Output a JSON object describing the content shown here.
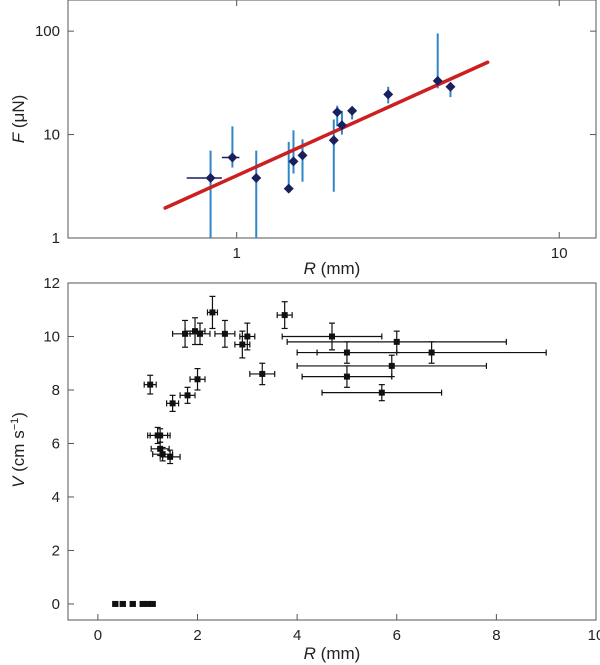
{
  "chart_data": [
    {
      "type": "scatter",
      "xscale": "log",
      "yscale": "log",
      "xlim": [
        0.3,
        13
      ],
      "ylim": [
        1,
        200
      ],
      "xlabel_var": "R",
      "xlabel_unit": " (mm)",
      "ylabel_var": "F",
      "ylabel_unit": " (μN)",
      "xticks": [
        {
          "value": 1,
          "label": "1"
        },
        {
          "value": 10,
          "label": "10"
        }
      ],
      "yticks": [
        {
          "value": 1,
          "label": "1"
        },
        {
          "value": 10,
          "label": "10"
        },
        {
          "value": 100,
          "label": "100"
        }
      ],
      "colors": {
        "points": "#1a1f5e",
        "error_bars": "#2e86c8",
        "fit_line": "#cc1f1f"
      },
      "points": [
        {
          "x": 0.83,
          "y": 3.8,
          "ylo": 1.0,
          "yhi": 7.0,
          "xlo": 0.7,
          "xhi": 0.9
        },
        {
          "x": 0.97,
          "y": 6.0,
          "ylo": 4.8,
          "yhi": 12.0,
          "xlo": 0.9,
          "xhi": 1.02
        },
        {
          "x": 1.15,
          "y": 3.8,
          "ylo": 1.0,
          "yhi": 7.0
        },
        {
          "x": 1.45,
          "y": 3.0,
          "ylo": 3.0,
          "yhi": 8.5
        },
        {
          "x": 1.5,
          "y": 5.5,
          "ylo": 4.2,
          "yhi": 11.0
        },
        {
          "x": 1.6,
          "y": 6.3,
          "ylo": 3.5,
          "yhi": 9.0
        },
        {
          "x": 2.0,
          "y": 8.8,
          "ylo": 2.8,
          "yhi": 14.0
        },
        {
          "x": 2.05,
          "y": 16.5,
          "ylo": 12.0,
          "yhi": 19.0
        },
        {
          "x": 2.12,
          "y": 12.3,
          "ylo": 10.0,
          "yhi": 17.0
        },
        {
          "x": 2.28,
          "y": 17.0,
          "ylo": 14.0,
          "yhi": 18.5
        },
        {
          "x": 2.95,
          "y": 24.5,
          "ylo": 20.0,
          "yhi": 29.0
        },
        {
          "x": 4.2,
          "y": 33.0,
          "ylo": 28.0,
          "yhi": 95.0
        },
        {
          "x": 4.6,
          "y": 29.0,
          "ylo": 23.0,
          "yhi": 32.0
        }
      ],
      "fit_line": {
        "x": [
          0.6,
          6.0
        ],
        "y": [
          1.95,
          50.0
        ]
      }
    },
    {
      "type": "scatter",
      "xlim": [
        -0.6,
        10
      ],
      "ylim": [
        -0.6,
        12
      ],
      "xlabel_var": "R",
      "xlabel_unit": " (mm)",
      "ylabel_var": "V",
      "ylabel_unit": " (cm s",
      "ylabel_exp": "−1",
      "ylabel_close": ")",
      "xticks": [
        {
          "value": 0,
          "label": "0"
        },
        {
          "value": 2,
          "label": "2"
        },
        {
          "value": 4,
          "label": "4"
        },
        {
          "value": 6,
          "label": "6"
        },
        {
          "value": 8,
          "label": "8"
        },
        {
          "value": 10,
          "label": "10"
        }
      ],
      "yticks": [
        {
          "value": 0,
          "label": "0"
        },
        {
          "value": 2,
          "label": "2"
        },
        {
          "value": 4,
          "label": "4"
        },
        {
          "value": 6,
          "label": "6"
        },
        {
          "value": 8,
          "label": "8"
        },
        {
          "value": 10,
          "label": "10"
        },
        {
          "value": 12,
          "label": "12"
        }
      ],
      "colors": {
        "points": "#111111"
      },
      "points": [
        {
          "x": 0.35,
          "y": 0,
          "xerr": 0.05
        },
        {
          "x": 0.5,
          "y": 0,
          "xerr": 0.05
        },
        {
          "x": 0.7,
          "y": 0,
          "xerr": 0.05
        },
        {
          "x": 0.9,
          "y": 0,
          "xerr": 0.05
        },
        {
          "x": 1.0,
          "y": 0,
          "xerr": 0.05
        },
        {
          "x": 1.1,
          "y": 0,
          "xerr": 0.05
        },
        {
          "x": 1.05,
          "y": 8.2,
          "xerr": 0.12,
          "yerr": 0.35
        },
        {
          "x": 1.2,
          "y": 6.3,
          "xerr": 0.2,
          "yerr": 0.3
        },
        {
          "x": 1.25,
          "y": 6.3,
          "xerr": 0.2,
          "yerr": 0.25
        },
        {
          "x": 1.25,
          "y": 5.8,
          "xerr": 0.18,
          "yerr": 0.25
        },
        {
          "x": 1.3,
          "y": 5.6,
          "xerr": 0.2,
          "yerr": 0.25
        },
        {
          "x": 1.45,
          "y": 5.5,
          "xerr": 0.2,
          "yerr": 0.25
        },
        {
          "x": 1.5,
          "y": 7.5,
          "xerr": 0.12,
          "yerr": 0.3
        },
        {
          "x": 1.8,
          "y": 7.8,
          "xerr": 0.15,
          "yerr": 0.3
        },
        {
          "x": 1.75,
          "y": 10.1,
          "xerr": 0.25,
          "yerr": 0.5
        },
        {
          "x": 1.95,
          "y": 10.2,
          "xerr": 0.2,
          "yerr": 0.5
        },
        {
          "x": 2.0,
          "y": 8.4,
          "xerr": 0.15,
          "yerr": 0.4
        },
        {
          "x": 2.05,
          "y": 10.1,
          "xerr": 0.2,
          "yerr": 0.4
        },
        {
          "x": 2.3,
          "y": 10.9,
          "xerr": 0.1,
          "yerr": 0.6
        },
        {
          "x": 2.55,
          "y": 10.1,
          "xerr": 0.2,
          "yerr": 0.5
        },
        {
          "x": 2.9,
          "y": 9.7,
          "xerr": 0.15,
          "yerr": 0.5
        },
        {
          "x": 3.0,
          "y": 10.0,
          "xerr": 0.15,
          "yerr": 0.5
        },
        {
          "x": 3.3,
          "y": 8.6,
          "xerr": 0.25,
          "yerr": 0.4
        },
        {
          "x": 3.75,
          "y": 10.8,
          "xerr": 0.15,
          "yerr": 0.5
        },
        {
          "x": 4.7,
          "y": 10.0,
          "xerr": 1.0,
          "yerr": 0.5
        },
        {
          "x": 5.0,
          "y": 9.4,
          "xerr": 1.0,
          "yerr": 0.4
        },
        {
          "x": 5.0,
          "y": 8.5,
          "xerr": 0.9,
          "yerr": 0.4
        },
        {
          "x": 5.7,
          "y": 7.9,
          "xerr": 1.2,
          "yerr": 0.3
        },
        {
          "x": 5.9,
          "y": 8.9,
          "xerr": 1.9,
          "yerr": 0.4
        },
        {
          "x": 6.0,
          "y": 9.8,
          "xerr": 2.2,
          "yerr": 0.4
        },
        {
          "x": 6.7,
          "y": 9.4,
          "xerr": 2.3,
          "yerr": 0.4
        }
      ]
    }
  ]
}
